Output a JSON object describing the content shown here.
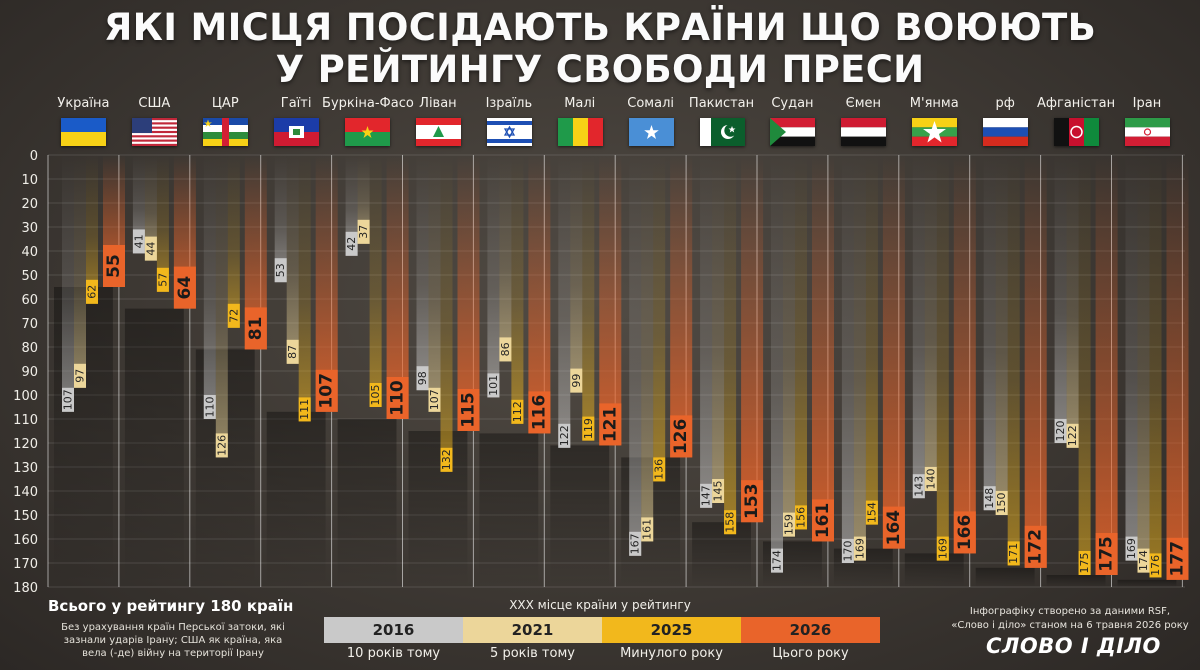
{
  "title_line1": "ЯКІ МІСЦЯ ПОСІДАЮТЬ КРАЇНИ ЩО ВОЮЮТЬ",
  "title_line2": "У РЕЙТИНГУ СВОБОДИ ПРЕСИ",
  "colors": {
    "y2016": "#c9c9c9",
    "y2021": "#ecd69a",
    "y2025": "#f2b81c",
    "y2026": "#e9642a"
  },
  "chart_data": {
    "type": "bar",
    "y_axis": {
      "min": 0,
      "max": 180,
      "step": 10,
      "inverted": true,
      "gridlines": true
    },
    "categories": [
      "Україна",
      "США",
      "ЦАР",
      "Гаїті",
      "Буркіна-Фасо",
      "Ліван",
      "Ізраїль",
      "Малі",
      "Сомалі",
      "Пакистан",
      "Судан",
      "Ємен",
      "М'янма",
      "рф",
      "Афганістан",
      "Іран"
    ],
    "series": [
      {
        "name": "2016",
        "values": [
          107,
          41,
          110,
          53,
          42,
          98,
          101,
          122,
          167,
          147,
          174,
          170,
          143,
          148,
          120,
          169
        ]
      },
      {
        "name": "2021",
        "values": [
          97,
          44,
          126,
          87,
          37,
          107,
          86,
          99,
          161,
          145,
          159,
          169,
          140,
          150,
          122,
          174
        ]
      },
      {
        "name": "2025",
        "values": [
          62,
          57,
          72,
          111,
          105,
          132,
          112,
          119,
          136,
          158,
          156,
          154,
          169,
          171,
          175,
          176
        ]
      },
      {
        "name": "2026",
        "values": [
          55,
          64,
          81,
          107,
          110,
          115,
          116,
          121,
          126,
          153,
          161,
          164,
          166,
          172,
          175,
          177
        ]
      }
    ]
  },
  "footnote": {
    "total": "Всього у рейтингу 180 країн",
    "note": "Без урахування країн Перської затоки, які зазнали ударів Ірану; США як країна, яка вела (-де) війну на території Ірану"
  },
  "legend": {
    "title": "ХХХ місце країни у рейтингу",
    "items": [
      {
        "year": "2016",
        "sub": "10 років тому"
      },
      {
        "year": "2021",
        "sub": "5 років тому"
      },
      {
        "year": "2025",
        "sub": "Минулого року"
      },
      {
        "year": "2026",
        "sub": "Цього року"
      }
    ]
  },
  "credit": "Інфографіку створено за даними RSF, «Слово і діло» станом на 6 травня 2026 року",
  "logo": "СЛОВО І ДІЛО"
}
